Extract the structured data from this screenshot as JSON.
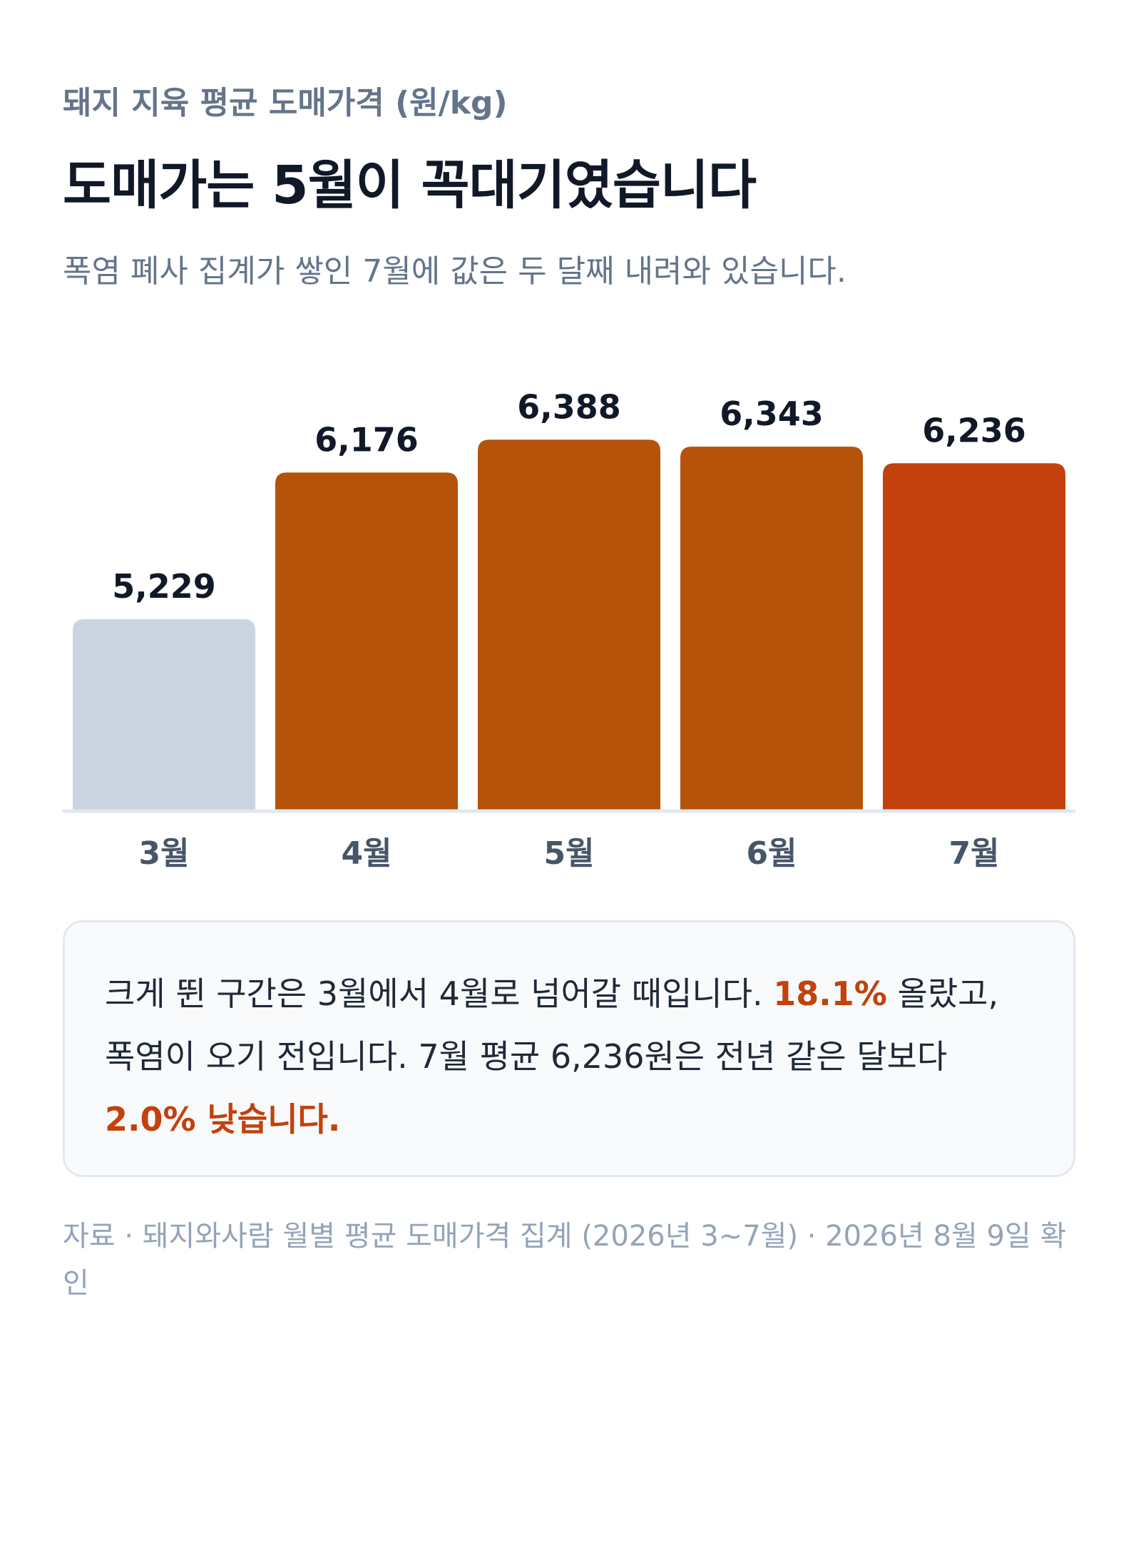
{
  "header": {
    "eyebrow": "돼지 지육 평균 도매가격 (원/kg)",
    "headline": "도매가는 5월이 꼭대기였습니다",
    "subtitle": "폭염 폐사 집계가 쌓인 7월에 값은 두 달째 내려와 있습니다."
  },
  "chart_data": {
    "type": "bar",
    "title": "돼지 지육 평균 도매가격 (원/kg)",
    "categories": [
      "3월",
      "4월",
      "5월",
      "6월",
      "7월"
    ],
    "values": [
      5229,
      6176,
      6388,
      6343,
      6236
    ],
    "value_labels": [
      "5,229",
      "6,176",
      "6,388",
      "6,343",
      "6,236"
    ],
    "bar_colors": [
      "#cbd5e1",
      "#b45309",
      "#b45309",
      "#b45309",
      "#c2410c"
    ],
    "xlabel": "",
    "ylabel": "",
    "grid": false,
    "legend": "none"
  },
  "callout": {
    "text_1": "크게 뛴 구간은 3월에서 4월로 넘어갈 때입니다. ",
    "highlight_1": "18.1%",
    "text_2": " 올랐고, 폭염이 오기 전입니다. 7월 평균 6,236원은 전년 같은 달보다 ",
    "highlight_2": "2.0% 낮습니다."
  },
  "source": "자료 · 돼지와사람 월별 평균 도매가격 집계 (2026년 3~7월) · 2026년 8월 9일 확인",
  "colors": {
    "accent": "#c2410c",
    "bar_main": "#b45309",
    "bar_muted": "#cbd5e1",
    "text_muted": "#64748b"
  }
}
